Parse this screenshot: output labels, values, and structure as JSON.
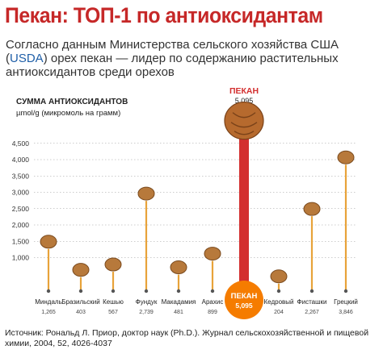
{
  "header": {
    "title": "Пекан: ТОП-1 по антиоксидантам",
    "subtitle_before": "Согласно данным Министерства сельского хозяйства США (",
    "subtitle_usda": "USDA",
    "subtitle_after": ") орех пекан — лидер по содержанию растительных антиоксидантов среди орехов"
  },
  "footer": {
    "source": "Источник: Рональд Л. Приор, доктор наук (Ph.D.). Журнал сельскохозяйственной и пищевой химии, 2004, 52, 4026-4037"
  },
  "colors": {
    "title": "#c62828",
    "highlight": "#d32f2f",
    "bar": "#e8a33a",
    "dot": "#555555",
    "grid": "#999999"
  },
  "chart_data": {
    "type": "bar",
    "title": "",
    "ylabel": "СУММА АНТИОКСИДАНТОВ",
    "yunit": "µmol/g (микромоль на грамм)",
    "ylim": [
      0,
      5000
    ],
    "yticks": [
      "1,000",
      "1,500",
      "2,000",
      "2,500",
      "3,000",
      "3,500",
      "4,000",
      "4,500"
    ],
    "grid": true,
    "highlight_category": "ПЕКАН",
    "top_label": "ПЕКАН",
    "top_value_label": "5,095",
    "categories": [
      "Миндаль",
      "Бразильский",
      "Кешью",
      "Фундук",
      "Макадамия",
      "Арахис",
      "ПЕКАН",
      "Кедровый",
      "Фисташки",
      "Грецкий"
    ],
    "value_labels": [
      "1,265",
      "403",
      "567",
      "2,739",
      "481",
      "899",
      "5,095",
      "204",
      "2,267",
      "3,846"
    ],
    "values": [
      1265,
      403,
      567,
      2739,
      481,
      899,
      5095,
      204,
      2267,
      3846
    ]
  }
}
